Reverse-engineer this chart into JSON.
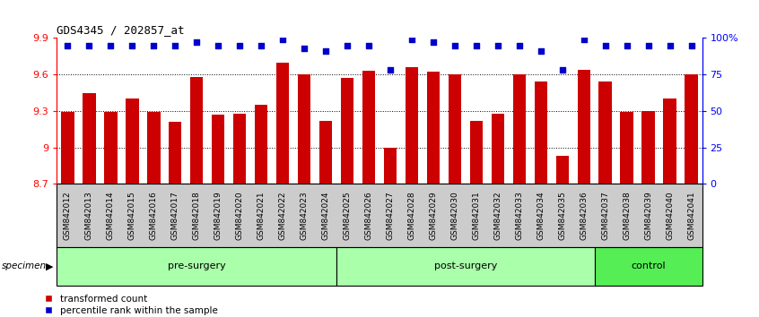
{
  "title": "GDS4345 / 202857_at",
  "categories": [
    "GSM842012",
    "GSM842013",
    "GSM842014",
    "GSM842015",
    "GSM842016",
    "GSM842017",
    "GSM842018",
    "GSM842019",
    "GSM842020",
    "GSM842021",
    "GSM842022",
    "GSM842023",
    "GSM842024",
    "GSM842025",
    "GSM842026",
    "GSM842027",
    "GSM842028",
    "GSM842029",
    "GSM842030",
    "GSM842031",
    "GSM842032",
    "GSM842033",
    "GSM842034",
    "GSM842035",
    "GSM842036",
    "GSM842037",
    "GSM842038",
    "GSM842039",
    "GSM842040",
    "GSM842041"
  ],
  "bar_values": [
    9.29,
    9.45,
    9.29,
    9.4,
    9.29,
    9.21,
    9.58,
    9.27,
    9.28,
    9.35,
    9.7,
    9.6,
    9.22,
    9.57,
    9.63,
    9.0,
    9.66,
    9.62,
    9.6,
    9.22,
    9.28,
    9.6,
    9.54,
    8.93,
    9.64,
    9.54,
    9.29,
    9.3,
    9.4,
    9.6
  ],
  "percentile_values": [
    95,
    95,
    95,
    95,
    95,
    95,
    97,
    95,
    95,
    95,
    99,
    93,
    91,
    95,
    95,
    78,
    99,
    97,
    95,
    95,
    95,
    95,
    91,
    78,
    99,
    95,
    95,
    95,
    95,
    95
  ],
  "groups": [
    {
      "label": "pre-surgery",
      "start": 0,
      "end": 13,
      "color": "#AAFFAA"
    },
    {
      "label": "post-surgery",
      "start": 13,
      "end": 25,
      "color": "#AAFFAA"
    },
    {
      "label": "control",
      "start": 25,
      "end": 30,
      "color": "#55EE55"
    }
  ],
  "bar_color": "#CC0000",
  "dot_color": "#0000CC",
  "ymin": 8.7,
  "ymax": 9.9,
  "yticks": [
    8.7,
    9.0,
    9.3,
    9.6,
    9.9
  ],
  "ytick_labels": [
    "8.7",
    "9",
    "9.3",
    "9.6",
    "9.9"
  ],
  "right_yticks": [
    0,
    25,
    50,
    75,
    100
  ],
  "right_yticklabels": [
    "0",
    "25",
    "50",
    "75",
    "100%"
  ],
  "legend_items": [
    {
      "label": "transformed count",
      "color": "#CC0000"
    },
    {
      "label": "percentile rank within the sample",
      "color": "#0000CC"
    }
  ],
  "bg_color": "#FFFFFF",
  "xticklabel_bg": "#DDDDDD",
  "group_color_light": "#AAFFAA",
  "group_color_dark": "#55EE55"
}
